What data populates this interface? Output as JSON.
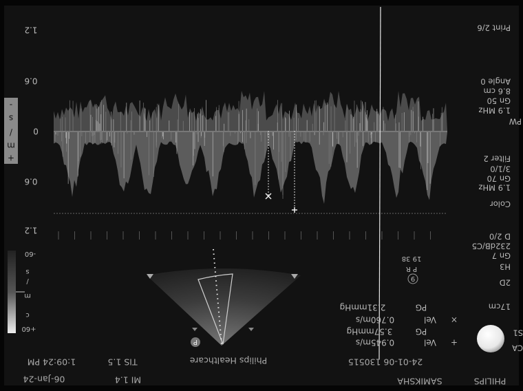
{
  "velocity_scale": {
    "ticks": [
      "1.2",
      "0.6",
      "0",
      "0.6",
      "1.2"
    ],
    "unit": [
      "-",
      "s",
      "/",
      "m",
      "+"
    ]
  },
  "settings": [
    "Print 2/6",
    "Angle 0",
    "8.6 cm",
    "Gn 50",
    "1.9 MHz",
    "PW",
    "Filter 2",
    "3/1/0",
    "Gn 70",
    "1.9 MHz",
    "Color",
    "D 2/0",
    "232dB/C5",
    "Gn 7",
    "H3",
    "2D",
    "17cm",
    "S1",
    "CA"
  ],
  "color_bar": {
    "top": "-60",
    "bottom": "+60",
    "unit": [
      "s",
      "/",
      "m",
      "c"
    ]
  },
  "measurements": [
    {
      "marker": "+",
      "label": "Vel",
      "value": "0.945m/s"
    },
    {
      "label": "PG",
      "value": "3.57mmHg"
    },
    {
      "marker": "×",
      "label": "Vel",
      "value": "0.760m/s"
    },
    {
      "label": "PG",
      "value": "2.31mmHg"
    }
  ],
  "focus": {
    "symbol": "9",
    "label": "P R",
    "values": "19 38"
  },
  "probe_marker": "P",
  "footer": {
    "brand": "PHILIPS",
    "site": "SAMIKSHA",
    "id": "24-01-06 130515",
    "maker": "Philips Healthcare",
    "tis": "TIS 1.5",
    "mi": "MI 1.4",
    "time": "1:09:24 PM",
    "date": "06-Jan-24"
  }
}
